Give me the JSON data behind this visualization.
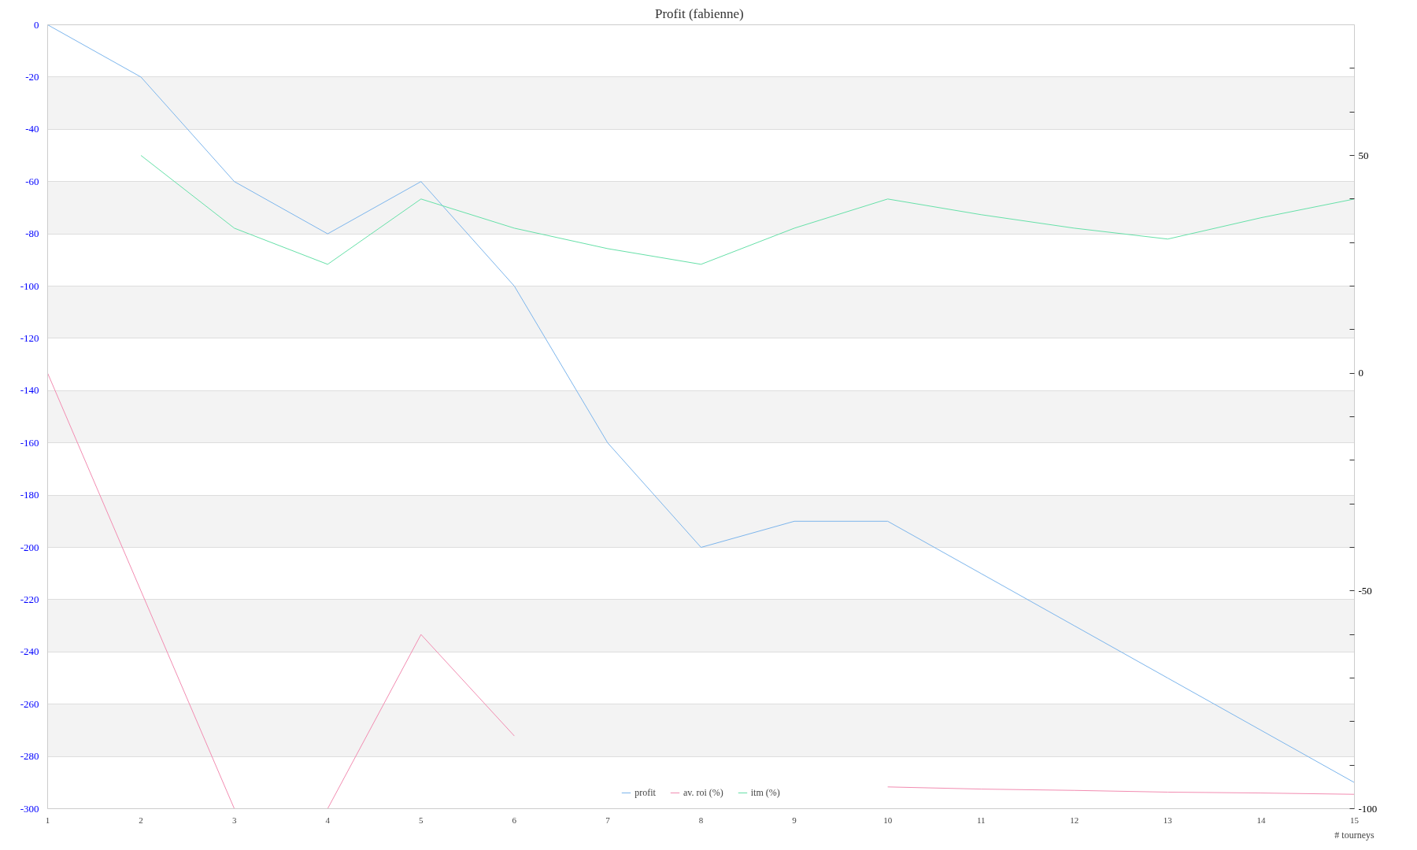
{
  "chart_data": {
    "type": "line",
    "title": "Profit  (fabienne)",
    "xlabel": "# tourneys",
    "x": [
      1,
      2,
      3,
      4,
      5,
      6,
      7,
      8,
      9,
      10,
      11,
      12,
      13,
      14,
      15
    ],
    "xlim": [
      1,
      15
    ],
    "xticks": [
      1,
      2,
      3,
      4,
      5,
      6,
      7,
      8,
      9,
      10,
      11,
      12,
      13,
      14,
      15
    ],
    "ylim": [
      -300,
      0
    ],
    "yticks": [
      -300,
      -280,
      -260,
      -240,
      -220,
      -200,
      -180,
      -160,
      -140,
      -120,
      -100,
      -80,
      -60,
      -40,
      -20,
      0
    ],
    "y2lim": [
      -100,
      80
    ],
    "y2ticks": [
      -100,
      {
        "value": -90,
        "label": null
      },
      {
        "value": -80,
        "label": null
      },
      {
        "value": -70,
        "label": null
      },
      {
        "value": -60,
        "label": null
      },
      -50,
      {
        "value": -40,
        "label": null
      },
      {
        "value": -30,
        "label": null
      },
      {
        "value": -20,
        "label": null
      },
      {
        "value": -10,
        "label": null
      },
      0,
      {
        "value": 10,
        "label": null
      },
      {
        "value": 20,
        "label": null
      },
      {
        "value": 30,
        "label": null
      },
      {
        "value": 40,
        "label": null
      },
      50,
      {
        "value": 60,
        "label": null
      },
      {
        "value": 70,
        "label": null
      }
    ],
    "grid": "y",
    "legend": "bottom",
    "marker": "none",
    "line_style": "solid",
    "series": [
      {
        "name": "profit",
        "color": "#7cb5ec",
        "values": [
          0,
          -20,
          -60,
          -80,
          -60,
          -100,
          -160,
          -200,
          -190,
          -190,
          -210,
          -230,
          -250,
          -270,
          -290
        ]
      },
      {
        "name": "av. roi (%)",
        "color": "#f28cb1",
        "axis": "y2",
        "values": [
          0,
          -50,
          -100,
          -100,
          -60,
          -83.3,
          null,
          null,
          null,
          -95,
          -95.5,
          -95.8,
          -96.2,
          -96.4,
          -96.7
        ]
      },
      {
        "name": "itm (%)",
        "color": "#66e0a8",
        "axis": "y2",
        "values": [
          null,
          50,
          33.3,
          25,
          40,
          33.3,
          28.6,
          25,
          33.3,
          40,
          36.4,
          33.3,
          30.8,
          35.7,
          40
        ]
      }
    ]
  }
}
